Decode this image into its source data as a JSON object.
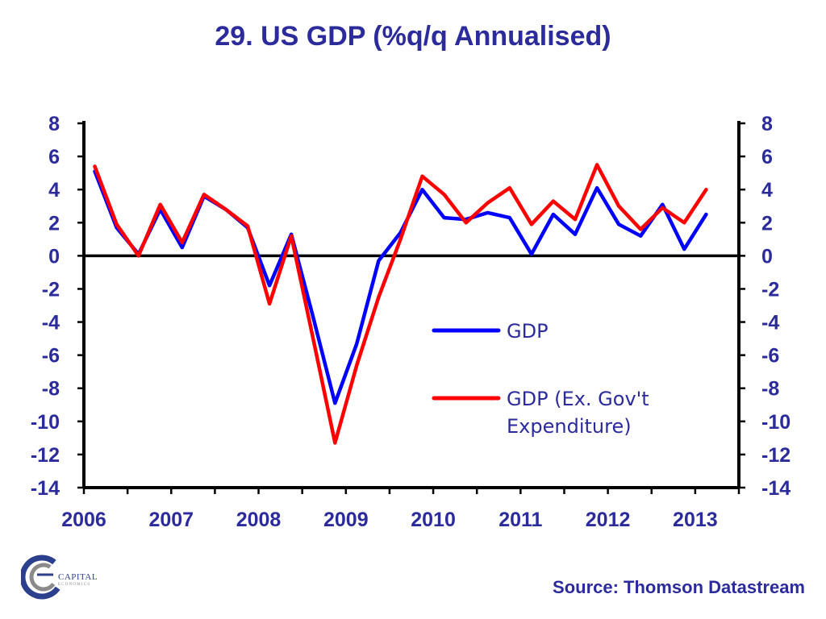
{
  "colors": {
    "text": "#2B2B9C",
    "axis": "#000000",
    "gdp": "#0000FF",
    "gdp_ex_gov": "#FF0000",
    "logo_blue": "#2B3F8C",
    "logo_gray": "#8A8A8A"
  },
  "chart_data": {
    "type": "line",
    "title": "29. US GDP (%q/q Annualised)",
    "x_tick_labels": [
      "2006",
      "2007",
      "2008",
      "2009",
      "2010",
      "2011",
      "2012",
      "2013"
    ],
    "x_tick_years": [
      2006,
      2007,
      2008,
      2009,
      2010,
      2011,
      2012,
      2013
    ],
    "xlim": [
      2006,
      2013.5
    ],
    "ylim": [
      -14,
      8
    ],
    "y_ticks": [
      8,
      6,
      4,
      2,
      0,
      -2,
      -4,
      -6,
      -8,
      -10,
      -12,
      -14
    ],
    "y2_ticks": [
      8,
      6,
      4,
      2,
      0,
      -2,
      -4,
      -6,
      -8,
      -10,
      -12,
      -14
    ],
    "x": [
      "2006-Q1",
      "2006-Q2",
      "2006-Q3",
      "2006-Q4",
      "2007-Q1",
      "2007-Q2",
      "2007-Q3",
      "2007-Q4",
      "2008-Q1",
      "2008-Q2",
      "2008-Q3",
      "2008-Q4",
      "2009-Q1",
      "2009-Q2",
      "2009-Q3",
      "2009-Q4",
      "2010-Q1",
      "2010-Q2",
      "2010-Q3",
      "2010-Q4",
      "2011-Q1",
      "2011-Q2",
      "2011-Q3",
      "2011-Q4",
      "2012-Q1",
      "2012-Q2",
      "2012-Q3",
      "2012-Q4",
      "2013-Q1",
      "2013-Q2"
    ],
    "series": [
      {
        "name": "GDP",
        "color": "#0000FF",
        "values": [
          5.1,
          1.7,
          0.1,
          2.8,
          0.5,
          3.6,
          2.8,
          1.7,
          -1.8,
          1.3,
          -3.7,
          -8.9,
          -5.3,
          -0.3,
          1.4,
          4.0,
          2.3,
          2.2,
          2.6,
          2.3,
          0.1,
          2.5,
          1.3,
          4.1,
          1.9,
          1.2,
          3.1,
          0.4,
          2.5,
          null
        ]
      },
      {
        "name": "GDP (Ex. Gov't Expenditure)",
        "color": "#FF0000",
        "values": [
          5.4,
          1.9,
          0.0,
          3.1,
          0.8,
          3.7,
          2.8,
          1.8,
          -2.9,
          1.2,
          -5.0,
          -11.3,
          -6.6,
          -2.5,
          1.0,
          4.8,
          3.7,
          2.0,
          3.2,
          4.1,
          1.9,
          3.3,
          2.2,
          5.5,
          3.0,
          1.6,
          2.9,
          2.0,
          4.0,
          null
        ]
      }
    ],
    "legend": {
      "placement": "center-right",
      "entries": [
        {
          "lines": [
            "GDP"
          ]
        },
        {
          "lines": [
            "GDP (Ex. Gov't",
            "Expenditure)"
          ]
        }
      ]
    },
    "grid": false
  },
  "footer": {
    "source": "Source: Thomson Datastream",
    "logo_text": "CAPITAL",
    "logo_sub": "ECONOMICS"
  }
}
